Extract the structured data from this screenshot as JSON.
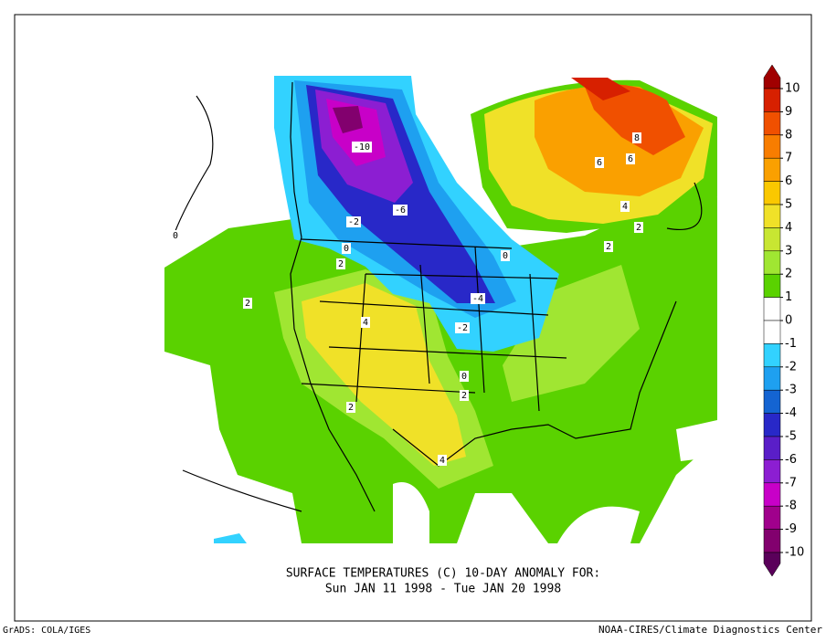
{
  "title_lines": [
    "SURFACE TEMPERATURES (C)   10-DAY ANOMALY FOR:",
    "Sun JAN 11 1998 - Tue JAN 20 1998"
  ],
  "footer_left": "GrADS: COLA/IGES",
  "footer_right": "NOAA-CIRES/Climate Diagnostics Center",
  "colorbar": {
    "levels": [
      10,
      9,
      8,
      7,
      6,
      5,
      4,
      3,
      2,
      1,
      0,
      -1,
      -2,
      -3,
      -4,
      -5,
      -6,
      -7,
      -8,
      -9,
      -10
    ],
    "colors": [
      "#a00000",
      "#d72000",
      "#f05000",
      "#f87d00",
      "#faa000",
      "#fac800",
      "#f0e128",
      "#c8e632",
      "#a0e632",
      "#5ad200",
      "#ffffff",
      "#ffffff",
      "#32d2ff",
      "#1ea0f0",
      "#1464d2",
      "#2828c8",
      "#5a1ec8",
      "#8c1ed2",
      "#c800c8",
      "#a0008c",
      "#82006e",
      "#5a005a"
    ]
  },
  "contour_labels": [
    -10,
    -6,
    -2,
    0,
    2,
    2,
    4,
    -4,
    -2,
    0,
    2,
    2,
    4,
    6,
    6,
    8,
    4,
    2,
    2,
    0,
    0
  ]
}
